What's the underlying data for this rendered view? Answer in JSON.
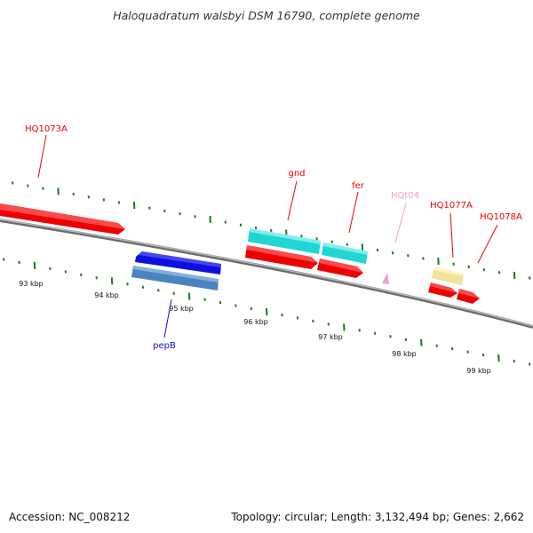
{
  "title": "Haloquadratum walsbyi DSM 16790, complete genome",
  "footer": {
    "accession": "Accession: NC_008212",
    "topology": "Topology: circular; Length: 3,132,494 bp; Genes: 2,662"
  },
  "colors": {
    "backbone": "#8a8a8a",
    "tick": "#1d7a1d",
    "red_gene": "#ee0000",
    "cyan_gene": "#22d5d5",
    "blue_gene": "#1010dd",
    "steel_gene": "#4a84c0",
    "yellow_gene": "#f2e29a",
    "pink_gene": "#f0a0cc"
  },
  "scale": {
    "tick_labels": [
      "93 kbp",
      "94 kbp",
      "95 kbp",
      "96 kbp",
      "97 kbp",
      "98 kbp",
      "99 kbp"
    ]
  },
  "genes": [
    {
      "label": "HQ1073A",
      "strand": "+",
      "color": "red"
    },
    {
      "label": "pepB",
      "strand": "-",
      "color": "blue"
    },
    {
      "label": "gnd",
      "strand": "+",
      "color": "cyan"
    },
    {
      "label": "fer",
      "strand": "+",
      "color": "cyan"
    },
    {
      "label": "HQt04",
      "strand": "-",
      "color": "pink"
    },
    {
      "label": "HQ1077A",
      "strand": "+",
      "color": "yellow"
    },
    {
      "label": "HQ1078A",
      "strand": "+",
      "color": "red"
    }
  ]
}
